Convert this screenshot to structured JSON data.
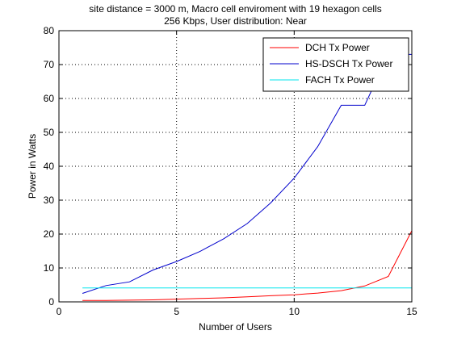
{
  "chart_data": {
    "type": "line",
    "title_lines": [
      "site distance = 3000 m, Macro cell enviroment with 19 hexagon cells",
      "256 Kbps, User distribution: Near"
    ],
    "xlabel": "Number of Users",
    "ylabel": "Power in Watts",
    "xlim": [
      0,
      15
    ],
    "ylim": [
      0,
      80
    ],
    "x_ticks": [
      0,
      5,
      10,
      15
    ],
    "y_ticks": [
      0,
      10,
      20,
      30,
      40,
      50,
      60,
      70,
      80
    ],
    "grid": true,
    "grid_style": "dotted",
    "legend_position": "top-right",
    "series": [
      {
        "name": "DCH Tx Power",
        "color": "#ff0000",
        "x": [
          1,
          2,
          3,
          4,
          5,
          6,
          7,
          8,
          9,
          10,
          11,
          12,
          13,
          14,
          15
        ],
        "y": [
          0.4,
          0.4,
          0.5,
          0.6,
          0.8,
          1.0,
          1.2,
          1.5,
          1.8,
          2.1,
          2.6,
          3.3,
          4.7,
          7.5,
          21
        ]
      },
      {
        "name": "HS-DSCH Tx Power",
        "color": "#0000cc",
        "x": [
          1,
          2,
          3,
          4,
          5,
          6,
          7,
          8,
          9,
          10,
          11,
          12,
          13,
          14,
          15
        ],
        "y": [
          2.5,
          4.8,
          5.9,
          9.4,
          11.9,
          14.9,
          18.6,
          23.1,
          29.2,
          36.5,
          45.8,
          58.0,
          58.0,
          73.0,
          73.0
        ]
      },
      {
        "name": "FACH Tx Power",
        "color": "#00e5ee",
        "x": [
          1,
          15
        ],
        "y": [
          4.1,
          4.1
        ]
      }
    ]
  }
}
